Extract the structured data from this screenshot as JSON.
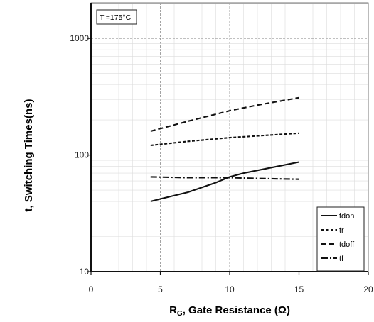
{
  "chart_data": {
    "type": "line",
    "title": "",
    "annotation": "Tj=175°C",
    "xlabel_main": "R",
    "xlabel_sub": "G",
    "xlabel_rest": ", Gate Resistance (Ω)",
    "ylabel": "t, Switching Times(ns)",
    "x_scale": "linear",
    "y_scale": "log",
    "xlim": [
      0,
      20
    ],
    "ylim": [
      10,
      2000
    ],
    "x_ticks": [
      0,
      5,
      10,
      15,
      20
    ],
    "y_ticks": [
      10,
      100,
      1000
    ],
    "grid": true,
    "legend_position": "bottom-right",
    "series": [
      {
        "name": "tdon",
        "dash": "solid",
        "x": [
          4.3,
          5,
          7,
          9,
          10,
          11,
          13,
          15
        ],
        "y": [
          40,
          42,
          48,
          58,
          65,
          70,
          78,
          87
        ]
      },
      {
        "name": "tr",
        "dash": "dash-short",
        "x": [
          4.3,
          7,
          10,
          12,
          15
        ],
        "y": [
          121,
          131,
          141,
          146,
          154
        ]
      },
      {
        "name": "tdoff",
        "dash": "dash-long",
        "x": [
          4.3,
          7,
          10,
          12,
          15
        ],
        "y": [
          160,
          195,
          240,
          268,
          310
        ]
      },
      {
        "name": "tf",
        "dash": "dash-dot",
        "x": [
          4.3,
          7,
          10,
          12,
          15
        ],
        "y": [
          65,
          64,
          64,
          63,
          62
        ]
      }
    ]
  }
}
